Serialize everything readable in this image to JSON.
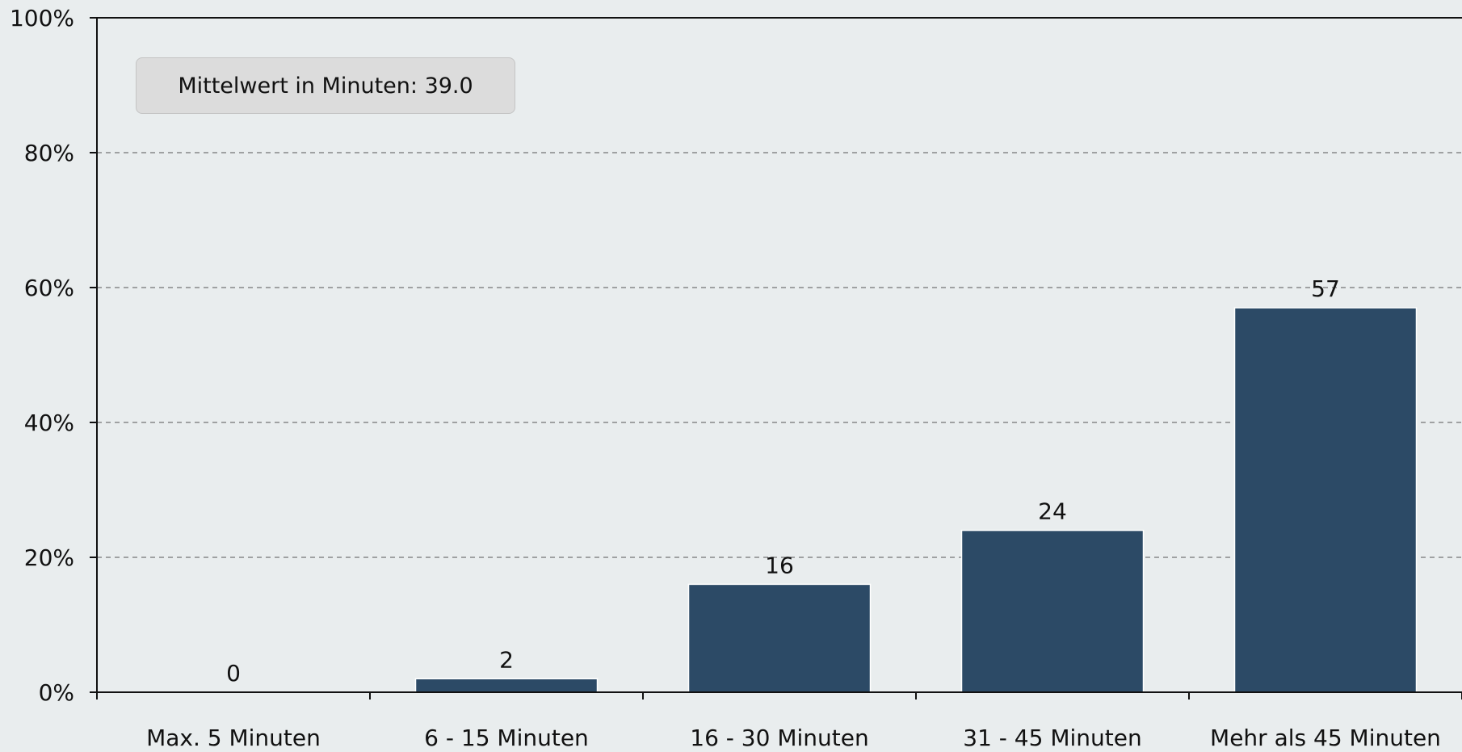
{
  "chart_data": {
    "type": "bar",
    "title": "",
    "xlabel": "",
    "ylabel": "",
    "categories": [
      "Max. 5 Minuten",
      "6 - 15 Minuten",
      "16 - 30 Minuten",
      "31 - 45 Minuten",
      "Mehr als 45 Minuten"
    ],
    "values": [
      0,
      2,
      16,
      24,
      57
    ],
    "data_labels": [
      "0",
      "2",
      "16",
      "24",
      "57"
    ],
    "ylim": [
      0,
      100
    ],
    "yticks": [
      0,
      20,
      40,
      60,
      80,
      100
    ],
    "ytick_labels": [
      "0%",
      "20%",
      "40%",
      "60%",
      "80%",
      "100%"
    ],
    "grid": "horizontal-dashed",
    "bar_color": "#2c4a66",
    "background_color": "#e9edee",
    "annotation": "Mittelwert in Minuten: 39.0"
  }
}
